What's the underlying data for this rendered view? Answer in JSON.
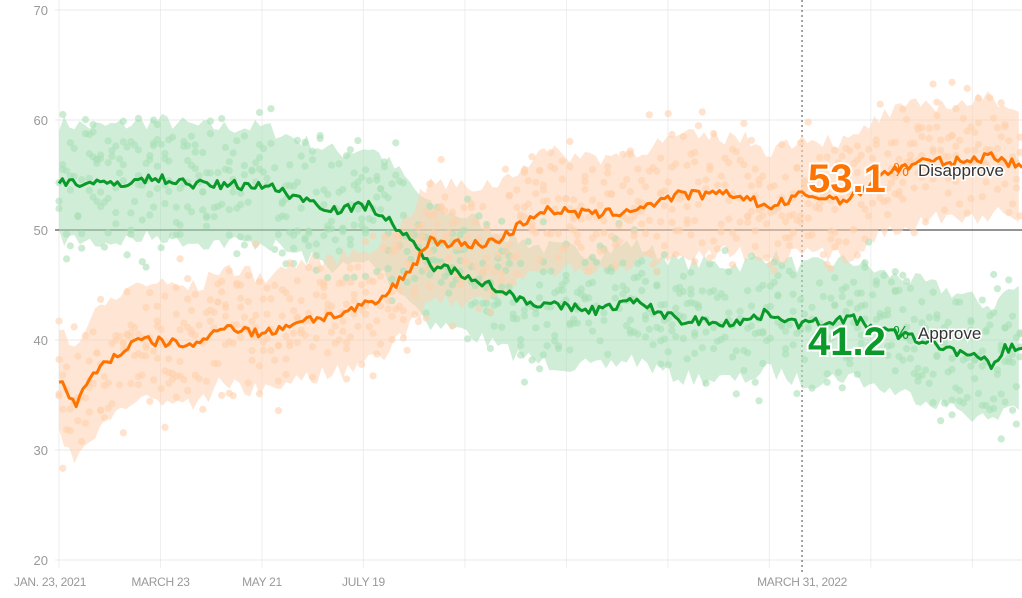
{
  "chart_data": {
    "type": "line",
    "title": "",
    "xlabel": "",
    "ylabel": "",
    "ylim": [
      20,
      70
    ],
    "y_ticks": [
      "20",
      "30",
      "40",
      "50",
      "60",
      "70"
    ],
    "x_unit": "days since Jan. 23, 2021",
    "xlim": [
      0,
      560
    ],
    "x_tick_labels": [
      {
        "day": 0,
        "label": "JAN. 23, 2021"
      },
      {
        "day": 59,
        "label": "MARCH 23"
      },
      {
        "day": 118,
        "label": "MAY 21"
      },
      {
        "day": 177,
        "label": "JULY 19"
      },
      {
        "day": 432,
        "label": "MARCH 31, 2022"
      }
    ],
    "highlight_day": 432,
    "reference_line": 50,
    "series": [
      {
        "name": "Approve",
        "color": "#0a9a2a",
        "band_color": "#a9dfb6",
        "current_value": "41.2",
        "label": "Approve",
        "points": [
          [
            0,
            54.5
          ],
          [
            24,
            54.1
          ],
          [
            59,
            54.7
          ],
          [
            82,
            54.1
          ],
          [
            119,
            54.1
          ],
          [
            152,
            52.3
          ],
          [
            163,
            51.8
          ],
          [
            181,
            52.3
          ],
          [
            198,
            50
          ],
          [
            216,
            46.8
          ],
          [
            239,
            45.9
          ],
          [
            256,
            44.5
          ],
          [
            280,
            43.2
          ],
          [
            315,
            42.7
          ],
          [
            332,
            43.6
          ],
          [
            361,
            41.8
          ],
          [
            396,
            41.6
          ],
          [
            413,
            42.5
          ],
          [
            432,
            41.4
          ],
          [
            460,
            42
          ],
          [
            477,
            40.9
          ],
          [
            501,
            40
          ],
          [
            524,
            38.9
          ],
          [
            544,
            37.7
          ],
          [
            550,
            39.3
          ],
          [
            560,
            39.3
          ]
        ]
      },
      {
        "name": "Disapprove",
        "color": "#ff7300",
        "band_color": "#ffd0ae",
        "current_value": "53.1",
        "label": "Disapprove",
        "points": [
          [
            0,
            36.4
          ],
          [
            9,
            34.1
          ],
          [
            24,
            37.7
          ],
          [
            47,
            40
          ],
          [
            82,
            39.5
          ],
          [
            94,
            41.4
          ],
          [
            119,
            40.5
          ],
          [
            140,
            41.8
          ],
          [
            163,
            42.3
          ],
          [
            187,
            43.6
          ],
          [
            204,
            46.4
          ],
          [
            216,
            49.1
          ],
          [
            239,
            48.6
          ],
          [
            256,
            49.1
          ],
          [
            280,
            51.8
          ],
          [
            315,
            51.4
          ],
          [
            332,
            51.8
          ],
          [
            361,
            53.2
          ],
          [
            396,
            53.2
          ],
          [
            413,
            52
          ],
          [
            432,
            53.2
          ],
          [
            460,
            52.7
          ],
          [
            477,
            55
          ],
          [
            501,
            56.2
          ],
          [
            524,
            56.2
          ],
          [
            544,
            56.8
          ],
          [
            560,
            55.6
          ]
        ]
      }
    ],
    "percent_sign": "%"
  }
}
